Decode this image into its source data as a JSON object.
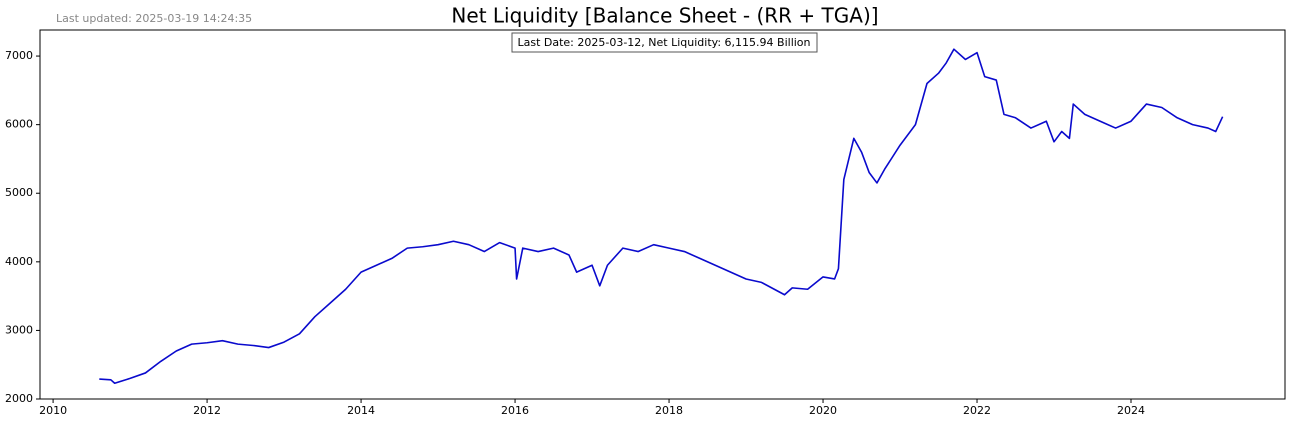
{
  "chart_data": {
    "type": "line",
    "title": "Net Liquidity [Balance Sheet - (RR + TGA)]",
    "subtitle": "Last updated: 2025-03-19 14:24:35",
    "annotation": "Last Date: 2025-03-12, Net Liquidity: 6,115.94 Billion",
    "color": "#0a0acd",
    "x": [
      2010.6,
      2010.75,
      2010.8,
      2011.0,
      2011.2,
      2011.4,
      2011.6,
      2011.8,
      2012.0,
      2012.2,
      2012.4,
      2012.6,
      2012.8,
      2013.0,
      2013.2,
      2013.4,
      2013.6,
      2013.8,
      2014.0,
      2014.2,
      2014.4,
      2014.6,
      2014.8,
      2015.0,
      2015.2,
      2015.4,
      2015.6,
      2015.8,
      2016.0,
      2016.02,
      2016.1,
      2016.3,
      2016.5,
      2016.7,
      2016.8,
      2017.0,
      2017.1,
      2017.2,
      2017.4,
      2017.6,
      2017.8,
      2018.0,
      2018.2,
      2018.4,
      2018.6,
      2018.8,
      2019.0,
      2019.2,
      2019.4,
      2019.5,
      2019.6,
      2019.8,
      2020.0,
      2020.15,
      2020.2,
      2020.27,
      2020.4,
      2020.5,
      2020.6,
      2020.7,
      2020.8,
      2021.0,
      2021.2,
      2021.35,
      2021.5,
      2021.6,
      2021.7,
      2021.85,
      2022.0,
      2022.1,
      2022.25,
      2022.35,
      2022.5,
      2022.7,
      2022.9,
      2023.0,
      2023.1,
      2023.2,
      2023.25,
      2023.4,
      2023.6,
      2023.8,
      2024.0,
      2024.2,
      2024.4,
      2024.6,
      2024.8,
      2025.0,
      2025.1,
      2025.19
    ],
    "values": [
      2290,
      2280,
      2230,
      2300,
      2380,
      2550,
      2700,
      2800,
      2820,
      2850,
      2800,
      2780,
      2750,
      2830,
      2950,
      3200,
      3400,
      3600,
      3850,
      3950,
      4050,
      4200,
      4220,
      4250,
      4300,
      4250,
      4150,
      4280,
      4200,
      3750,
      4200,
      4150,
      4200,
      4100,
      3850,
      3950,
      3650,
      3950,
      4200,
      4150,
      4250,
      4200,
      4150,
      4050,
      3950,
      3850,
      3750,
      3700,
      3580,
      3520,
      3620,
      3600,
      3780,
      3750,
      3900,
      5200,
      5800,
      5600,
      5300,
      5150,
      5350,
      5700,
      6000,
      6600,
      6750,
      6900,
      7100,
      6950,
      7050,
      6700,
      6650,
      6150,
      6100,
      5950,
      6050,
      5750,
      5900,
      5800,
      6300,
      6150,
      6050,
      5950,
      6050,
      6300,
      6250,
      6100,
      6000,
      5950,
      5900,
      6115.94
    ],
    "xlim": [
      2009.83,
      2026.0
    ],
    "ylim": [
      2000,
      7380
    ],
    "xticks": [
      2010,
      2012,
      2014,
      2016,
      2018,
      2020,
      2022,
      2024
    ],
    "yticks": [
      2000,
      3000,
      4000,
      5000,
      6000,
      7000
    ]
  }
}
